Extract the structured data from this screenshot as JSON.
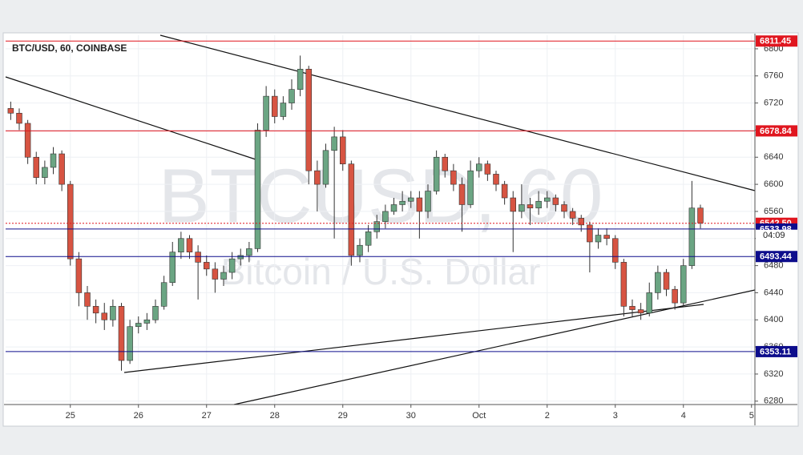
{
  "chart_data": {
    "type": "candlestick",
    "title": "BTC/USD, 60, COINBASE",
    "watermark": {
      "symbol": "BTCUSD, 60",
      "description": "Bitcoin / U.S. Dollar"
    },
    "up_color": "#6ba583",
    "down_color": "#d75442",
    "grid": true,
    "xlim": [
      24.05,
      35.05
    ],
    "ylim": [
      6275,
      6820
    ],
    "xticks": [
      25,
      26,
      27,
      28,
      29,
      30,
      {
        "value": 31,
        "label": "Oct"
      },
      {
        "value": 32,
        "label": "2"
      },
      {
        "value": 33,
        "label": "3"
      },
      {
        "value": 34,
        "label": "4"
      },
      {
        "value": 35,
        "label": "5"
      }
    ],
    "yticks": [
      6280,
      6320,
      6360,
      6400,
      6440,
      6480,
      6520,
      6560,
      6600,
      6640,
      6680,
      6720,
      6760,
      6800
    ],
    "x": [
      24.125,
      24.25,
      24.375,
      24.5,
      24.625,
      24.75,
      24.875,
      25,
      25.125,
      25.25,
      25.375,
      25.5,
      25.625,
      25.75,
      25.875,
      26,
      26.125,
      26.25,
      26.375,
      26.5,
      26.625,
      26.75,
      26.875,
      27,
      27.125,
      27.25,
      27.375,
      27.5,
      27.625,
      27.75,
      27.875,
      28,
      28.125,
      28.25,
      28.375,
      28.5,
      28.625,
      28.75,
      28.875,
      29,
      29.125,
      29.25,
      29.375,
      29.5,
      29.625,
      29.75,
      29.875,
      30,
      30.125,
      30.25,
      30.375,
      30.5,
      30.625,
      30.75,
      30.875,
      31,
      31.125,
      31.25,
      31.375,
      31.5,
      31.625,
      31.75,
      31.875,
      32,
      32.125,
      32.25,
      32.375,
      32.5,
      32.625,
      32.75,
      32.875,
      33,
      33.125,
      33.25,
      33.375,
      33.5,
      33.625,
      33.75,
      33.875,
      34,
      34.125,
      34.25
    ],
    "open": [
      6712,
      6705,
      6690,
      6640,
      6610,
      6625,
      6645,
      6600,
      6490,
      6440,
      6420,
      6410,
      6400,
      6420,
      6340,
      6390,
      6395,
      6400,
      6420,
      6455,
      6500,
      6520,
      6500,
      6485,
      6475,
      6460,
      6470,
      6490,
      6495,
      6505,
      6680,
      6730,
      6700,
      6720,
      6740,
      6770,
      6620,
      6600,
      6650,
      6670,
      6630,
      6495,
      6510,
      6530,
      6545,
      6560,
      6570,
      6575,
      6580,
      6560,
      6590,
      6640,
      6620,
      6600,
      6570,
      6620,
      6630,
      6615,
      6600,
      6580,
      6560,
      6570,
      6565,
      6575,
      6580,
      6570,
      6560,
      6550,
      6540,
      6515,
      6525,
      6520,
      6485,
      6420,
      6415,
      6410,
      6440,
      6470,
      6445,
      6425,
      6480,
      6565
    ],
    "high": [
      6722,
      6712,
      6695,
      6648,
      6635,
      6655,
      6650,
      6605,
      6500,
      6450,
      6430,
      6425,
      6430,
      6425,
      6400,
      6405,
      6410,
      6430,
      6465,
      6515,
      6530,
      6525,
      6510,
      6495,
      6485,
      6480,
      6500,
      6505,
      6515,
      6690,
      6745,
      6740,
      6730,
      6755,
      6790,
      6775,
      6635,
      6660,
      6685,
      6680,
      6635,
      6520,
      6540,
      6555,
      6570,
      6580,
      6590,
      6590,
      6590,
      6600,
      6650,
      6645,
      6630,
      6610,
      6635,
      6640,
      6635,
      6620,
      6605,
      6590,
      6600,
      6580,
      6590,
      6590,
      6585,
      6575,
      6565,
      6555,
      6545,
      6535,
      6535,
      6525,
      6490,
      6430,
      6425,
      6455,
      6480,
      6475,
      6450,
      6490,
      6605,
      6570
    ],
    "low": [
      6695,
      6680,
      6630,
      6600,
      6600,
      6615,
      6590,
      6480,
      6420,
      6400,
      6395,
      6385,
      6390,
      6325,
      6335,
      6380,
      6385,
      6395,
      6415,
      6450,
      6490,
      6490,
      6430,
      6465,
      6440,
      6450,
      6460,
      6480,
      6485,
      6500,
      6670,
      6690,
      6695,
      6710,
      6730,
      6600,
      6560,
      6595,
      6520,
      6620,
      6480,
      6485,
      6500,
      6520,
      6535,
      6555,
      6560,
      6565,
      6520,
      6550,
      6585,
      6610,
      6590,
      6530,
      6565,
      6610,
      6605,
      6590,
      6570,
      6500,
      6550,
      6540,
      6555,
      6565,
      6560,
      6550,
      6540,
      6530,
      6470,
      6505,
      6510,
      6475,
      6405,
      6405,
      6400,
      6405,
      6430,
      6435,
      6415,
      6420,
      6475,
      6535
    ],
    "close": [
      6705,
      6690,
      6640,
      6610,
      6625,
      6645,
      6600,
      6490,
      6440,
      6420,
      6410,
      6400,
      6420,
      6340,
      6390,
      6395,
      6400,
      6420,
      6455,
      6500,
      6520,
      6500,
      6485,
      6475,
      6460,
      6470,
      6490,
      6495,
      6505,
      6680,
      6730,
      6700,
      6720,
      6740,
      6770,
      6620,
      6600,
      6650,
      6670,
      6630,
      6495,
      6510,
      6530,
      6545,
      6560,
      6570,
      6575,
      6580,
      6560,
      6590,
      6640,
      6620,
      6600,
      6570,
      6620,
      6630,
      6615,
      6600,
      6580,
      6560,
      6570,
      6565,
      6575,
      6580,
      6570,
      6560,
      6550,
      6540,
      6515,
      6525,
      6520,
      6485,
      6420,
      6415,
      6410,
      6440,
      6470,
      6445,
      6425,
      6480,
      6565,
      6543
    ],
    "levels": [
      {
        "value": 6811.45,
        "color": "#e0161f"
      },
      {
        "value": 6678.84,
        "color": "#e0161f"
      },
      {
        "value": 6542.5,
        "label": "6542.50",
        "color": "#e0161f",
        "dotted": true
      },
      {
        "value": 6533.98,
        "color": "#0d0d8c"
      },
      {
        "value": 6493.44,
        "color": "#0d0d8c"
      },
      {
        "value": 6353.11,
        "color": "#0d0d8c"
      }
    ],
    "countdown": "04:09"
  }
}
